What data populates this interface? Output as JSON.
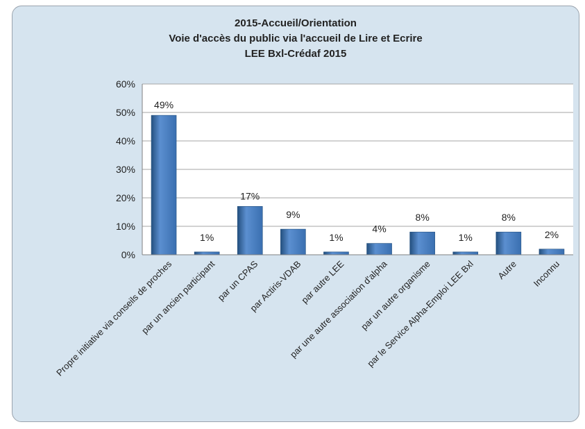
{
  "chart_data": {
    "type": "bar",
    "title_lines": [
      "2015-Accueil/Orientation",
      "Voie d'accès du public via l'accueil de Lire et Ecrire",
      "LEE Bxl-Crédaf 2015"
    ],
    "categories": [
      "Propre initiative via conseils de proches",
      "par un ancien participant",
      "par un CPAS",
      "par Actiris-VDAB",
      "par autre LEE",
      "par une autre association d'alpha",
      "par un autre organisme",
      "par le Service Alpha-Emploi LEE Bxl",
      "Autre",
      "Inconnu"
    ],
    "values": [
      49,
      1,
      17,
      9,
      1,
      4,
      8,
      1,
      8,
      2
    ],
    "data_labels": [
      "49%",
      "1%",
      "17%",
      "9%",
      "1%",
      "4%",
      "8%",
      "1%",
      "8%",
      "2%"
    ],
    "y_ticks": [
      "0%",
      "10%",
      "20%",
      "30%",
      "40%",
      "50%",
      "60%"
    ],
    "ylim": [
      0,
      60
    ],
    "grid": true,
    "colors": {
      "bar": "#3a6fb0",
      "bar_light": "#5b8fd0",
      "bar_dark": "#24507f",
      "plot_bg": "#ffffff",
      "frame_bg": "#d6e4ef",
      "grid": "#a6a6a6"
    }
  }
}
